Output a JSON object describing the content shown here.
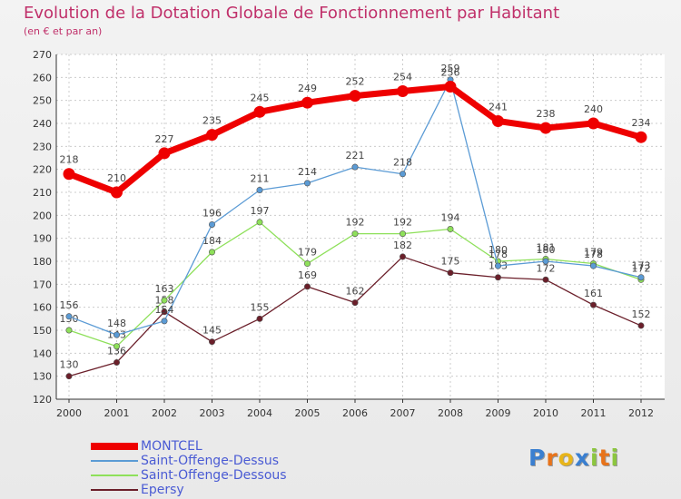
{
  "header": {
    "title": "Evolution de la Dotation Globale de Fonctionnement par Habitant",
    "subtitle": "(en € et par an)"
  },
  "chart_data": {
    "type": "line",
    "title": "Evolution de la Dotation Globale de Fonctionnement par Habitant",
    "subtitle": "(en € et par an)",
    "xlabel": "",
    "ylabel": "",
    "x": [
      "2000",
      "2001",
      "2002",
      "2003",
      "2004",
      "2005",
      "2006",
      "2007",
      "2008",
      "2009",
      "2010",
      "2011",
      "2012"
    ],
    "ylim": [
      120,
      270
    ],
    "yticks": [
      120,
      130,
      140,
      150,
      160,
      170,
      180,
      190,
      200,
      210,
      220,
      230,
      240,
      250,
      260,
      270
    ],
    "grid": true,
    "legend_position": "bottom-left",
    "series": [
      {
        "name": "MONTCEL",
        "color": "#ee0000",
        "values": [
          218,
          210,
          227,
          235,
          245,
          249,
          252,
          254,
          256,
          241,
          238,
          240,
          234
        ]
      },
      {
        "name": "Saint-Offenge-Dessus",
        "color": "#5b9bd5",
        "values": [
          156,
          148,
          154,
          196,
          211,
          214,
          221,
          218,
          259,
          178,
          180,
          178,
          173
        ]
      },
      {
        "name": "Saint-Offenge-Dessous",
        "color": "#8ee05a",
        "values": [
          150,
          143,
          163,
          184,
          197,
          179,
          192,
          192,
          194,
          180,
          181,
          179,
          172
        ]
      },
      {
        "name": "Epersy",
        "color": "#6b1f2a",
        "values": [
          130,
          136,
          158,
          145,
          155,
          169,
          162,
          182,
          175,
          173,
          172,
          161,
          152
        ]
      }
    ]
  },
  "brand": {
    "letters": [
      "P",
      "r",
      "o",
      "x",
      "i",
      "t",
      "i"
    ],
    "colors": [
      "#3a7fd0",
      "#e8731a",
      "#e8b51a",
      "#3a7fd0",
      "#8cc63f",
      "#e8731a",
      "#8cc63f"
    ]
  }
}
